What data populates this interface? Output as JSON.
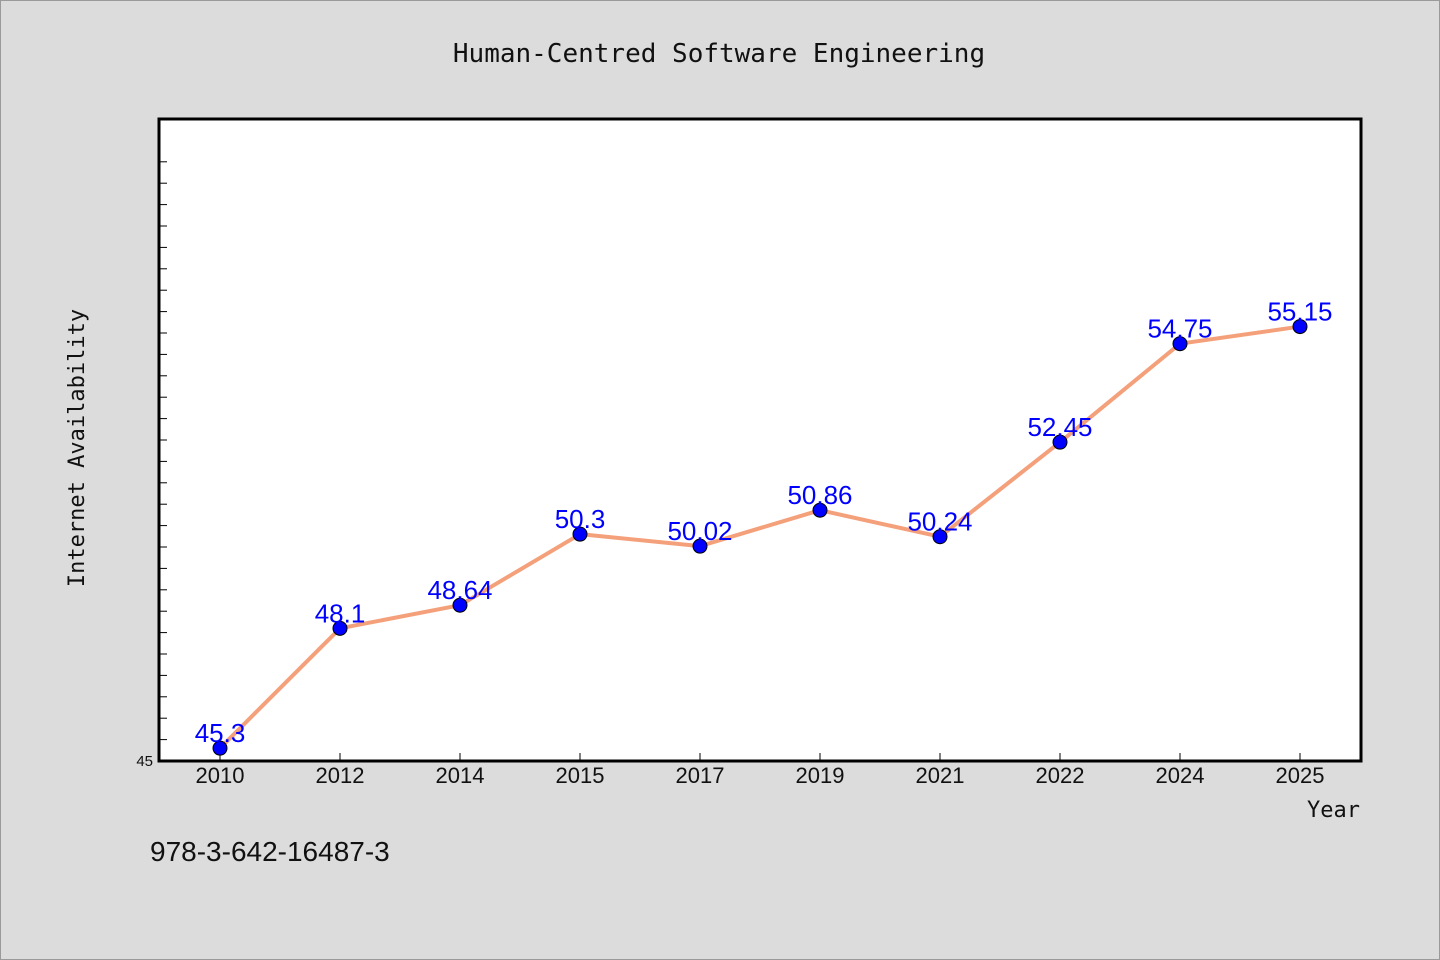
{
  "chart_data": {
    "type": "line",
    "title": "Human-Centred Software Engineering",
    "xlabel": "Year",
    "ylabel": "Internet Availability",
    "categories": [
      "2010",
      "2012",
      "2014",
      "2015",
      "2017",
      "2019",
      "2021",
      "2022",
      "2024",
      "2025"
    ],
    "series": [
      {
        "values": [
          45.3,
          48.1,
          48.64,
          50.3,
          50.02,
          50.86,
          50.24,
          52.45,
          54.75,
          55.15
        ]
      }
    ],
    "data_labels": [
      "45.3",
      "48.1",
      "48.64",
      "50.3",
      "50.02",
      "50.86",
      "50.24",
      "52.45",
      "54.75",
      "55.15"
    ],
    "ylim": [
      45,
      60
    ],
    "y_tick_label": "45",
    "grid": false,
    "line_color": "#f4a07a",
    "marker_color": "#0000ff",
    "label_color": "#0000ff"
  },
  "footer": {
    "isbn": "978-3-642-16487-3"
  }
}
